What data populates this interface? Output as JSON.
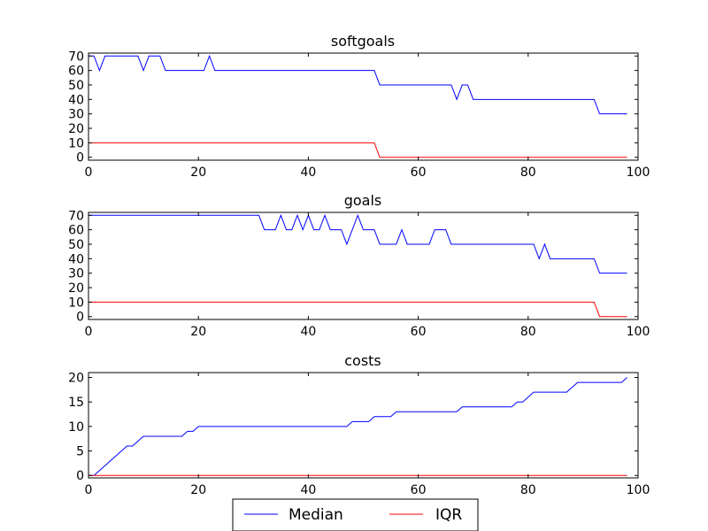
{
  "chart_data": [
    {
      "type": "line",
      "title": "softgoals",
      "xlim": [
        0,
        100
      ],
      "ylim": [
        -2,
        72
      ],
      "xticks": [
        0,
        20,
        40,
        60,
        80,
        100
      ],
      "yticks": [
        0,
        10,
        20,
        30,
        40,
        50,
        60,
        70
      ],
      "series": [
        {
          "name": "Median",
          "color": "#0000ff",
          "points": [
            [
              0,
              70
            ],
            [
              1,
              70
            ],
            [
              2,
              60
            ],
            [
              3,
              70
            ],
            [
              9,
              70
            ],
            [
              10,
              60
            ],
            [
              11,
              70
            ],
            [
              13,
              70
            ],
            [
              14,
              60
            ],
            [
              21,
              60
            ],
            [
              22,
              70
            ],
            [
              23,
              60
            ],
            [
              52,
              60
            ],
            [
              53,
              50
            ],
            [
              66,
              50
            ],
            [
              67,
              40
            ],
            [
              68,
              50
            ],
            [
              69,
              50
            ],
            [
              70,
              40
            ],
            [
              92,
              40
            ],
            [
              93,
              30
            ],
            [
              98,
              30
            ]
          ]
        },
        {
          "name": "IQR",
          "color": "#ff0000",
          "points": [
            [
              0,
              10
            ],
            [
              52,
              10
            ],
            [
              53,
              0
            ],
            [
              98,
              0
            ]
          ]
        }
      ]
    },
    {
      "type": "line",
      "title": "goals",
      "xlim": [
        0,
        100
      ],
      "ylim": [
        -2,
        72
      ],
      "xticks": [
        0,
        20,
        40,
        60,
        80,
        100
      ],
      "yticks": [
        0,
        10,
        20,
        30,
        40,
        50,
        60,
        70
      ],
      "series": [
        {
          "name": "Median",
          "color": "#0000ff",
          "points": [
            [
              0,
              70
            ],
            [
              31,
              70
            ],
            [
              32,
              60
            ],
            [
              34,
              60
            ],
            [
              35,
              70
            ],
            [
              36,
              60
            ],
            [
              37,
              60
            ],
            [
              38,
              70
            ],
            [
              39,
              60
            ],
            [
              40,
              70
            ],
            [
              41,
              60
            ],
            [
              42,
              60
            ],
            [
              43,
              70
            ],
            [
              44,
              60
            ],
            [
              46,
              60
            ],
            [
              47,
              50
            ],
            [
              49,
              70
            ],
            [
              50,
              60
            ],
            [
              52,
              60
            ],
            [
              53,
              50
            ],
            [
              56,
              50
            ],
            [
              57,
              60
            ],
            [
              58,
              50
            ],
            [
              62,
              50
            ],
            [
              63,
              60
            ],
            [
              65,
              60
            ],
            [
              66,
              50
            ],
            [
              81,
              50
            ],
            [
              82,
              40
            ],
            [
              83,
              50
            ],
            [
              84,
              40
            ],
            [
              92,
              40
            ],
            [
              93,
              30
            ],
            [
              98,
              30
            ]
          ]
        },
        {
          "name": "IQR",
          "color": "#ff0000",
          "points": [
            [
              0,
              10
            ],
            [
              92,
              10
            ],
            [
              93,
              0
            ],
            [
              98,
              0
            ]
          ]
        }
      ]
    },
    {
      "type": "line",
      "title": "costs",
      "xlim": [
        0,
        100
      ],
      "ylim": [
        -0.5,
        21
      ],
      "xticks": [
        0,
        20,
        40,
        60,
        80,
        100
      ],
      "yticks": [
        0,
        5,
        10,
        15,
        20
      ],
      "series": [
        {
          "name": "Median",
          "color": "#0000ff",
          "points": [
            [
              0,
              0
            ],
            [
              1,
              0
            ],
            [
              7,
              6
            ],
            [
              8,
              6
            ],
            [
              10,
              8
            ],
            [
              17,
              8
            ],
            [
              18,
              9
            ],
            [
              19,
              9
            ],
            [
              20,
              10
            ],
            [
              47,
              10
            ],
            [
              48,
              11
            ],
            [
              51,
              11
            ],
            [
              52,
              12
            ],
            [
              55,
              12
            ],
            [
              56,
              13
            ],
            [
              67,
              13
            ],
            [
              68,
              14
            ],
            [
              77,
              14
            ],
            [
              78,
              15
            ],
            [
              79,
              15
            ],
            [
              81,
              17
            ],
            [
              87,
              17
            ],
            [
              89,
              19
            ],
            [
              97,
              19
            ],
            [
              98,
              20
            ]
          ]
        },
        {
          "name": "IQR",
          "color": "#ff0000",
          "points": [
            [
              0,
              0
            ],
            [
              98,
              0
            ]
          ]
        }
      ]
    }
  ],
  "legend": {
    "entries": [
      {
        "label": "Median",
        "color": "#0000ff"
      },
      {
        "label": "IQR",
        "color": "#ff0000"
      }
    ],
    "placement": "bottom-center"
  }
}
